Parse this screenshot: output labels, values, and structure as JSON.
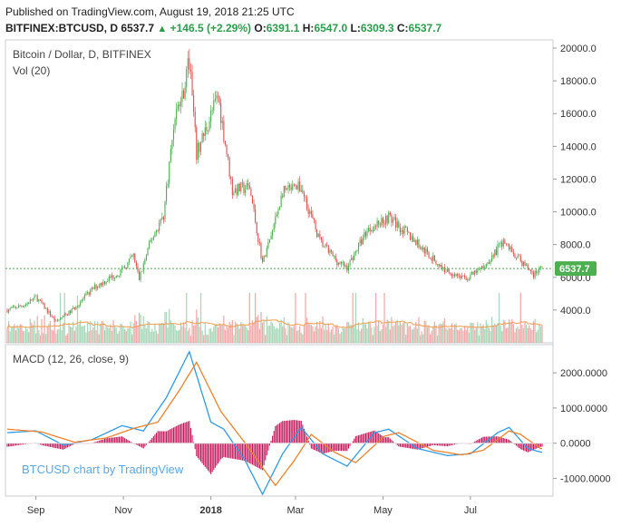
{
  "header": {
    "published": "Published on TradingView.com, August 19, 2018 21:25 UTC",
    "symbol": "BITFINEX:BTCUSD, D",
    "last": "6537.7",
    "change": "+146.5 (+2.29%)",
    "o_label": "O:",
    "o": "6391.1",
    "h_label": "H:",
    "h": "6547.0",
    "l_label": "L:",
    "l": "6309.3",
    "c_label": "C:",
    "c": "6537.7"
  },
  "colors": {
    "up": "#4caf50",
    "down": "#d9534f",
    "vol_up": "#a8d8b9",
    "vol_down": "#f2a9a9",
    "ma": "#f39c4a",
    "macd": "#2e9be6",
    "signal": "#f0822b",
    "hist_up": "#c2185b",
    "hist_down": "#c2185b",
    "price_line": "#4caf50"
  },
  "watermark": "BTCUSD chart by TradingView",
  "chart_data": [
    {
      "type": "candlestick",
      "title": "Bitcoin / Dollar, D, BITFINEX",
      "volume_label": "Vol (20)",
      "ylim": [
        2000,
        20500
      ],
      "y_ticks": [
        "20000.0",
        "18000.0",
        "16000.0",
        "14000.0",
        "12000.0",
        "10000.0",
        "8000.0",
        "6000.0",
        "4000.0"
      ],
      "y_tick_values": [
        20000,
        18000,
        16000,
        14000,
        12000,
        10000,
        8000,
        6000,
        4000
      ],
      "last_price_label": "6537.7",
      "last_price": 6537.7,
      "x_ticks": [
        "Sep",
        "Nov",
        "2018",
        "Mar",
        "May",
        "Jul"
      ],
      "x_tick_dates": [
        "2017-09-01",
        "2017-11-01",
        "2018-01-01",
        "2018-03-01",
        "2018-05-01",
        "2018-07-01"
      ],
      "x_range": [
        "2017-08-12",
        "2018-08-20"
      ],
      "close_series": [
        [
          "2017-08-12",
          4000
        ],
        [
          "2017-08-25",
          4350
        ],
        [
          "2017-09-01",
          4800
        ],
        [
          "2017-09-15",
          3300
        ],
        [
          "2017-09-25",
          3900
        ],
        [
          "2017-10-12",
          5400
        ],
        [
          "2017-10-31",
          6400
        ],
        [
          "2017-11-08",
          7300
        ],
        [
          "2017-11-12",
          5900
        ],
        [
          "2017-11-20",
          8200
        ],
        [
          "2017-11-29",
          9800
        ],
        [
          "2017-12-07",
          16000
        ],
        [
          "2017-12-12",
          17000
        ],
        [
          "2017-12-17",
          19300
        ],
        [
          "2017-12-22",
          13500
        ],
        [
          "2018-01-06",
          17100
        ],
        [
          "2018-01-16",
          11300
        ],
        [
          "2018-01-28",
          11500
        ],
        [
          "2018-02-06",
          6900
        ],
        [
          "2018-02-12",
          8500
        ],
        [
          "2018-02-20",
          11200
        ],
        [
          "2018-03-05",
          11500
        ],
        [
          "2018-03-18",
          8200
        ],
        [
          "2018-03-31",
          6900
        ],
        [
          "2018-04-06",
          6600
        ],
        [
          "2018-04-20",
          8900
        ],
        [
          "2018-05-05",
          9700
        ],
        [
          "2018-05-20",
          8500
        ],
        [
          "2018-06-12",
          6500
        ],
        [
          "2018-06-28",
          5900
        ],
        [
          "2018-07-10",
          6600
        ],
        [
          "2018-07-24",
          8200
        ],
        [
          "2018-08-05",
          7000
        ],
        [
          "2018-08-14",
          6200
        ],
        [
          "2018-08-19",
          6537.7
        ]
      ],
      "volume_range": [
        0,
        30000
      ]
    },
    {
      "type": "line",
      "title": "MACD (12, 26, close, 9)",
      "ylim": [
        -1500,
        2800
      ],
      "y_ticks": [
        "2000.0000",
        "1000.0000",
        "0.0000",
        "-1000.0000"
      ],
      "y_tick_values": [
        2000,
        1000,
        0,
        -1000
      ],
      "series": [
        {
          "key": "macd",
          "values": [
            [
              "2017-08-12",
              300
            ],
            [
              "2017-09-01",
              350
            ],
            [
              "2017-09-20",
              -50
            ],
            [
              "2017-10-10",
              100
            ],
            [
              "2017-10-31",
              500
            ],
            [
              "2017-11-15",
              350
            ],
            [
              "2017-12-01",
              1300
            ],
            [
              "2017-12-17",
              2600
            ],
            [
              "2018-01-01",
              600
            ],
            [
              "2018-01-10",
              400
            ],
            [
              "2018-01-25",
              -500
            ],
            [
              "2018-02-06",
              -1450
            ],
            [
              "2018-02-20",
              -300
            ],
            [
              "2018-03-05",
              450
            ],
            [
              "2018-03-20",
              -300
            ],
            [
              "2018-04-06",
              -650
            ],
            [
              "2018-04-25",
              300
            ],
            [
              "2018-05-05",
              400
            ],
            [
              "2018-05-25",
              -150
            ],
            [
              "2018-06-15",
              -350
            ],
            [
              "2018-07-01",
              -300
            ],
            [
              "2018-07-20",
              300
            ],
            [
              "2018-07-28",
              450
            ],
            [
              "2018-08-10",
              -150
            ],
            [
              "2018-08-19",
              -250
            ]
          ]
        },
        {
          "key": "signal",
          "values": [
            [
              "2017-08-12",
              400
            ],
            [
              "2017-09-05",
              320
            ],
            [
              "2017-09-28",
              30
            ],
            [
              "2017-10-20",
              150
            ],
            [
              "2017-11-08",
              420
            ],
            [
              "2017-11-25",
              600
            ],
            [
              "2017-12-10",
              1500
            ],
            [
              "2017-12-22",
              2300
            ],
            [
              "2018-01-08",
              900
            ],
            [
              "2018-01-25",
              0
            ],
            [
              "2018-02-15",
              -1200
            ],
            [
              "2018-02-28",
              -500
            ],
            [
              "2018-03-12",
              250
            ],
            [
              "2018-03-28",
              -250
            ],
            [
              "2018-04-12",
              -550
            ],
            [
              "2018-05-02",
              200
            ],
            [
              "2018-05-12",
              300
            ],
            [
              "2018-06-05",
              -200
            ],
            [
              "2018-06-25",
              -330
            ],
            [
              "2018-07-10",
              -200
            ],
            [
              "2018-07-28",
              350
            ],
            [
              "2018-08-05",
              250
            ],
            [
              "2018-08-19",
              -150
            ]
          ]
        }
      ]
    }
  ]
}
